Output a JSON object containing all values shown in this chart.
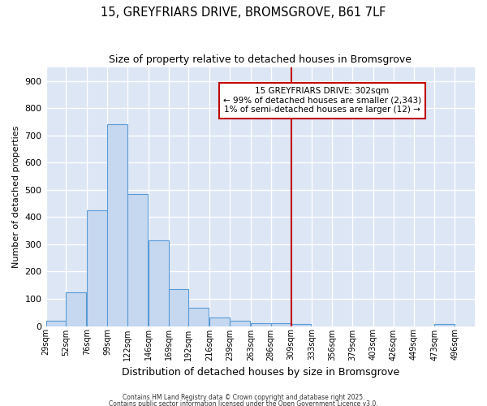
{
  "title": "15, GREYFRIARS DRIVE, BROMSGROVE, B61 7LF",
  "subtitle": "Size of property relative to detached houses in Bromsgrove",
  "xlabel": "Distribution of detached houses by size in Bromsgrove",
  "ylabel": "Number of detached properties",
  "bin_labels": [
    "29sqm",
    "52sqm",
    "76sqm",
    "99sqm",
    "122sqm",
    "146sqm",
    "169sqm",
    "192sqm",
    "216sqm",
    "239sqm",
    "263sqm",
    "286sqm",
    "309sqm",
    "333sqm",
    "356sqm",
    "379sqm",
    "403sqm",
    "426sqm",
    "449sqm",
    "473sqm",
    "496sqm"
  ],
  "bin_edges": [
    29,
    52,
    76,
    99,
    122,
    146,
    169,
    192,
    216,
    239,
    263,
    286,
    309,
    333,
    356,
    379,
    403,
    426,
    449,
    473,
    496
  ],
  "bar_heights": [
    20,
    125,
    425,
    740,
    485,
    315,
    135,
    68,
    30,
    20,
    10,
    10,
    8,
    0,
    0,
    0,
    0,
    0,
    0,
    8,
    0
  ],
  "bar_color": "#c5d8f0",
  "bar_edge_color": "#5b9bd5",
  "plot_bg_color": "#dce6f5",
  "fig_bg_color": "#ffffff",
  "grid_color": "#ffffff",
  "vline_x": 309,
  "vline_color": "#c00000",
  "annotation_text": "15 GREYFRIARS DRIVE: 302sqm\n← 99% of detached houses are smaller (2,343)\n1% of semi-detached houses are larger (12) →",
  "annotation_box_color": "#ffffff",
  "annotation_box_edge_color": "#c00000",
  "ylim": [
    0,
    950
  ],
  "yticks": [
    0,
    100,
    200,
    300,
    400,
    500,
    600,
    700,
    800,
    900
  ],
  "footnote1": "Contains HM Land Registry data © Crown copyright and database right 2025.",
  "footnote2": "Contains public sector information licensed under the Open Government Licence v3.0."
}
